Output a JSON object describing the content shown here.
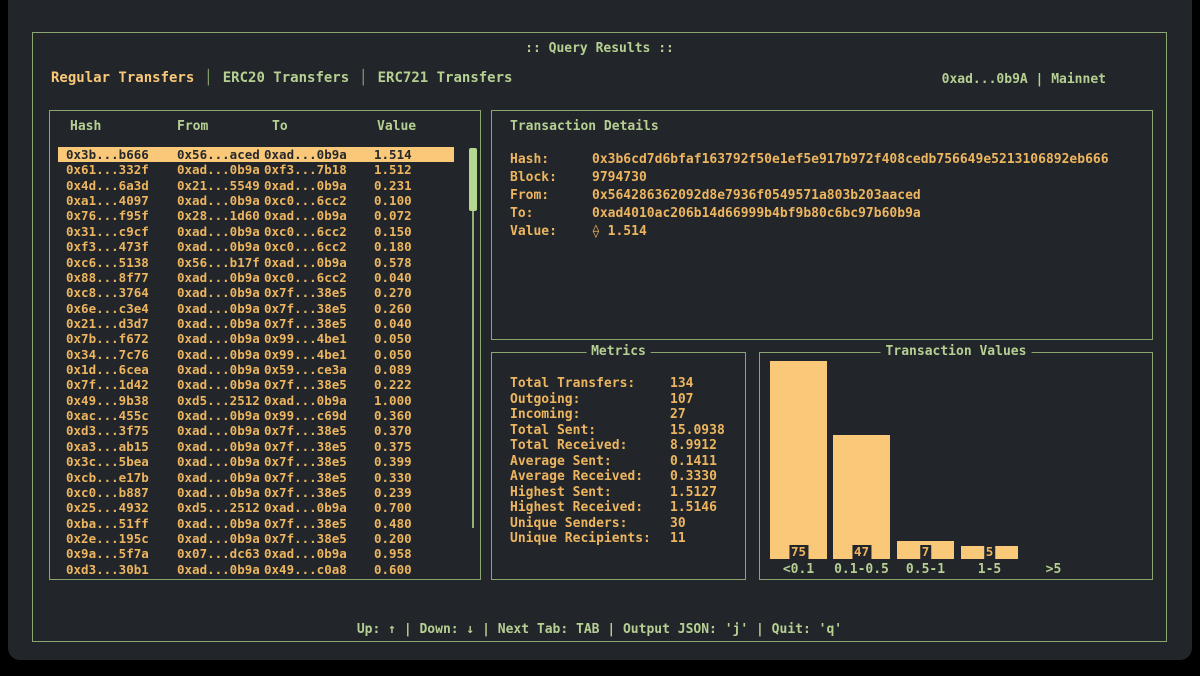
{
  "window": {
    "title": ":: Query Results ::"
  },
  "header": {
    "tabs": [
      {
        "label": "Regular Transfers",
        "active": true
      },
      {
        "label": "ERC20 Transfers",
        "active": false
      },
      {
        "label": "ERC721 Transfers",
        "active": false
      }
    ],
    "tab_separator": "│",
    "wallet": "0xad...0b9A | Mainnet"
  },
  "table": {
    "headers": [
      "Hash",
      "From",
      "To",
      "Value"
    ],
    "selected_index": 0,
    "rows": [
      [
        "0x3b...b666",
        "0x56...aced",
        "0xad...0b9a",
        "1.514"
      ],
      [
        "0x61...332f",
        "0xad...0b9a",
        "0xf3...7b18",
        "1.512"
      ],
      [
        "0x4d...6a3d",
        "0x21...5549",
        "0xad...0b9a",
        "0.231"
      ],
      [
        "0xa1...4097",
        "0xad...0b9a",
        "0xc0...6cc2",
        "0.100"
      ],
      [
        "0x76...f95f",
        "0x28...1d60",
        "0xad...0b9a",
        "0.072"
      ],
      [
        "0x31...c9cf",
        "0xad...0b9a",
        "0xc0...6cc2",
        "0.150"
      ],
      [
        "0xf3...473f",
        "0xad...0b9a",
        "0xc0...6cc2",
        "0.180"
      ],
      [
        "0xc6...5138",
        "0x56...b17f",
        "0xad...0b9a",
        "0.578"
      ],
      [
        "0x88...8f77",
        "0xad...0b9a",
        "0xc0...6cc2",
        "0.040"
      ],
      [
        "0xc8...3764",
        "0xad...0b9a",
        "0x7f...38e5",
        "0.270"
      ],
      [
        "0x6e...c3e4",
        "0xad...0b9a",
        "0x7f...38e5",
        "0.260"
      ],
      [
        "0x21...d3d7",
        "0xad...0b9a",
        "0x7f...38e5",
        "0.040"
      ],
      [
        "0x7b...f672",
        "0xad...0b9a",
        "0x99...4be1",
        "0.050"
      ],
      [
        "0x34...7c76",
        "0xad...0b9a",
        "0x99...4be1",
        "0.050"
      ],
      [
        "0x1d...6cea",
        "0xad...0b9a",
        "0x59...ce3a",
        "0.089"
      ],
      [
        "0x7f...1d42",
        "0xad...0b9a",
        "0x7f...38e5",
        "0.222"
      ],
      [
        "0x49...9b38",
        "0xd5...2512",
        "0xad...0b9a",
        "1.000"
      ],
      [
        "0xac...455c",
        "0xad...0b9a",
        "0x99...c69d",
        "0.360"
      ],
      [
        "0xd3...3f75",
        "0xad...0b9a",
        "0x7f...38e5",
        "0.370"
      ],
      [
        "0xa3...ab15",
        "0xad...0b9a",
        "0x7f...38e5",
        "0.375"
      ],
      [
        "0x3c...5bea",
        "0xad...0b9a",
        "0x7f...38e5",
        "0.399"
      ],
      [
        "0xcb...e17b",
        "0xad...0b9a",
        "0x7f...38e5",
        "0.330"
      ],
      [
        "0xc0...b887",
        "0xad...0b9a",
        "0x7f...38e5",
        "0.239"
      ],
      [
        "0x25...4932",
        "0xd5...2512",
        "0xad...0b9a",
        "0.700"
      ],
      [
        "0xba...51ff",
        "0xad...0b9a",
        "0x7f...38e5",
        "0.480"
      ],
      [
        "0x2e...195c",
        "0xad...0b9a",
        "0x7f...38e5",
        "0.200"
      ],
      [
        "0x9a...5f7a",
        "0x07...dc63",
        "0xad...0b9a",
        "0.958"
      ],
      [
        "0xd3...30b1",
        "0xad...0b9a",
        "0x49...c0a8",
        "0.600"
      ]
    ]
  },
  "details": {
    "title": "Transaction Details",
    "fields": [
      {
        "label": "Hash:",
        "value": "0x3b6cd7d6bfaf163792f50e1ef5e917b972f408cedb756649e5213106892eb666"
      },
      {
        "label": "Block:",
        "value": "9794730"
      },
      {
        "label": "From:",
        "value": "0x564286362092d8e7936f0549571a803b203aaced"
      },
      {
        "label": "To:",
        "value": "0xad4010ac206b14d66999b4bf9b80c6bc97b60b9a"
      },
      {
        "label": "Value:",
        "value": "⟠ 1.514"
      }
    ]
  },
  "metrics": {
    "title": "Metrics",
    "items": [
      {
        "label": "Total Transfers:",
        "value": "134"
      },
      {
        "label": "Outgoing:",
        "value": "107"
      },
      {
        "label": "Incoming:",
        "value": "27"
      },
      {
        "label": "Total Sent:",
        "value": "15.0938"
      },
      {
        "label": "Total Received:",
        "value": "8.9912"
      },
      {
        "label": "Average Sent:",
        "value": "0.1411"
      },
      {
        "label": "Average Received:",
        "value": "0.3330"
      },
      {
        "label": "Highest Sent:",
        "value": "1.5127"
      },
      {
        "label": "Highest Received:",
        "value": "1.5146"
      },
      {
        "label": "Unique Senders:",
        "value": "30"
      },
      {
        "label": "Unique Recipients:",
        "value": "11"
      }
    ]
  },
  "chart_data": {
    "type": "bar",
    "title": "Transaction Values",
    "categories": [
      "<0.1",
      "0.1-0.5",
      "0.5-1",
      "1-5",
      ">5"
    ],
    "values": [
      75,
      47,
      7,
      5,
      0
    ],
    "xlabel": "",
    "ylabel": "",
    "ylim": [
      0,
      75
    ],
    "grid": false,
    "value_labels": "shown at bar base",
    "bar_color": "#f9c878"
  },
  "footer": {
    "hints": "Up: ↑ | Down: ↓ | Next Tab: TAB | Output JSON: 'j' | Quit: 'q'"
  },
  "colors": {
    "background": "#22262a",
    "text_green": "#b6cf92",
    "border_green": "#8ba671",
    "text_amber": "#edb55f",
    "highlight_amber": "#f9c878"
  }
}
